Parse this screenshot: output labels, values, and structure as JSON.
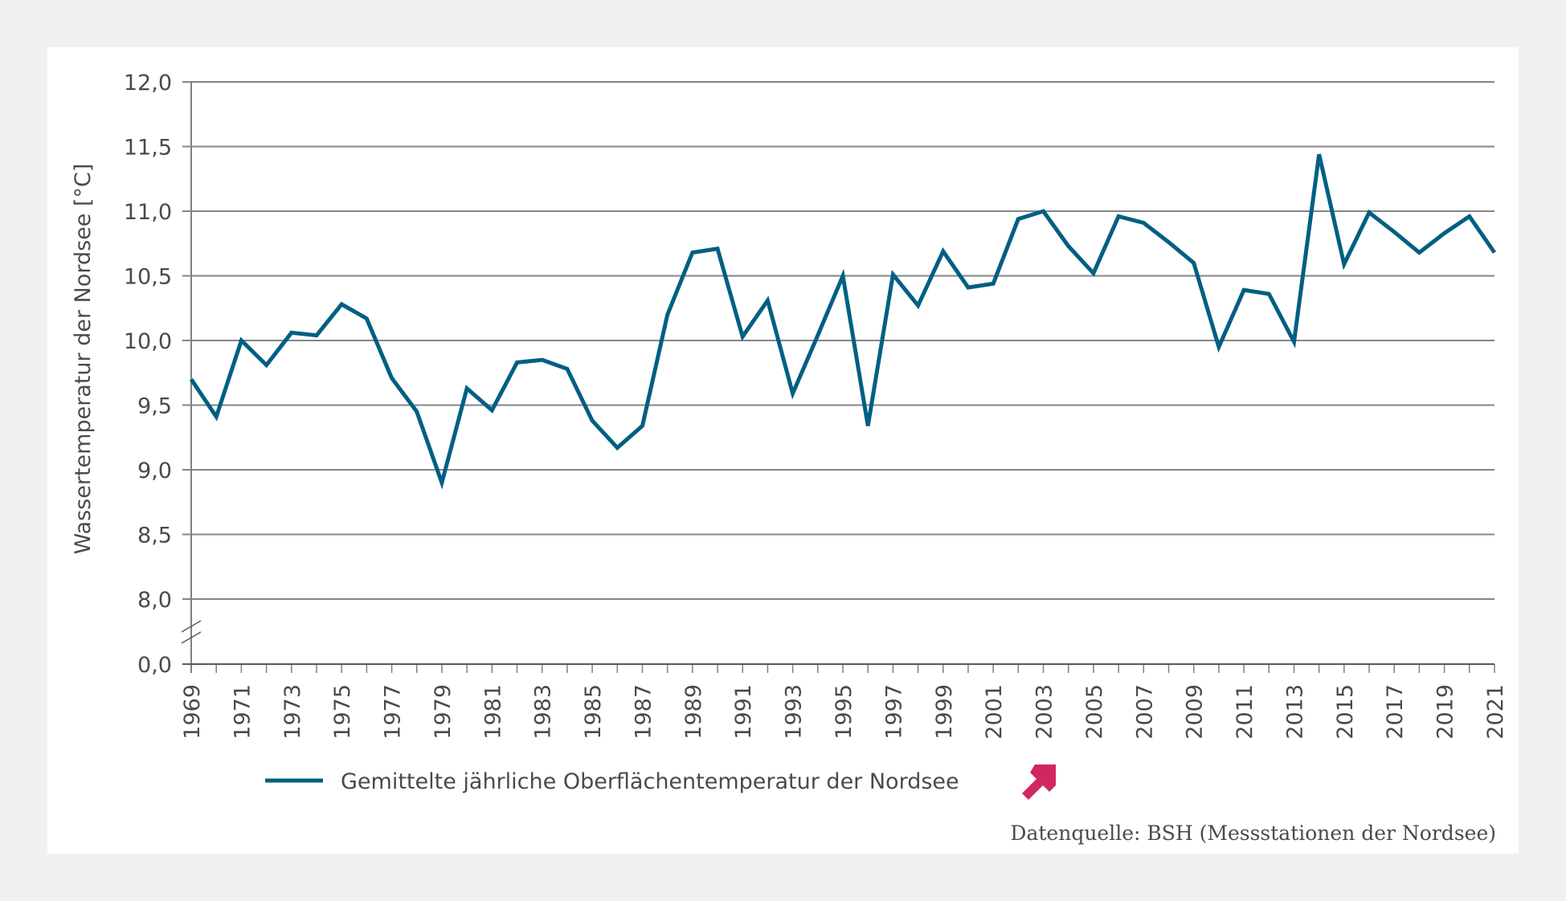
{
  "chart_data": {
    "type": "line",
    "title": "",
    "xlabel": "",
    "ylabel": "Wassertemperatur der Nordsee [°C]",
    "xlim": [
      1969,
      2021
    ],
    "ylim": [
      8.0,
      12.0
    ],
    "y_axis_break": {
      "from": 0.0,
      "to": 8.0
    },
    "grid": "horizontal",
    "y_ticks": [
      {
        "value": 12.0,
        "label": "12,0"
      },
      {
        "value": 11.5,
        "label": "11,5"
      },
      {
        "value": 11.0,
        "label": "11,0"
      },
      {
        "value": 10.5,
        "label": "10,5"
      },
      {
        "value": 10.0,
        "label": "10,0"
      },
      {
        "value": 9.5,
        "label": "9,5"
      },
      {
        "value": 9.0,
        "label": "9,0"
      },
      {
        "value": 8.5,
        "label": "8,5"
      },
      {
        "value": 8.0,
        "label": "8,0"
      },
      {
        "value": 0.0,
        "label": "0,0"
      }
    ],
    "x_tick_labels": [
      "1969",
      "1971",
      "1973",
      "1975",
      "1977",
      "1979",
      "1981",
      "1983",
      "1985",
      "1987",
      "1989",
      "1991",
      "1993",
      "1995",
      "1997",
      "1999",
      "2001",
      "2003",
      "2005",
      "2007",
      "2009",
      "2011",
      "2013",
      "2015",
      "2017",
      "2019",
      "2021"
    ],
    "x": [
      1969,
      1970,
      1971,
      1972,
      1973,
      1974,
      1975,
      1976,
      1977,
      1978,
      1979,
      1980,
      1981,
      1982,
      1983,
      1984,
      1985,
      1986,
      1987,
      1988,
      1989,
      1990,
      1991,
      1992,
      1993,
      1994,
      1995,
      1996,
      1997,
      1998,
      1999,
      2000,
      2001,
      2002,
      2003,
      2004,
      2005,
      2006,
      2007,
      2008,
      2009,
      2010,
      2011,
      2012,
      2013,
      2014,
      2015,
      2016,
      2017,
      2018,
      2019,
      2020,
      2021
    ],
    "series": [
      {
        "name": "Gemittelte jährliche Oberflächentemperatur der Nordsee",
        "color": "#005f83",
        "values": [
          9.7,
          9.41,
          10.0,
          9.81,
          10.06,
          10.04,
          10.28,
          10.17,
          9.71,
          9.45,
          8.9,
          9.63,
          9.46,
          9.83,
          9.85,
          9.78,
          9.38,
          9.17,
          9.34,
          10.2,
          10.68,
          10.71,
          10.03,
          10.31,
          9.59,
          10.04,
          10.5,
          9.34,
          10.51,
          10.27,
          10.69,
          10.41,
          10.44,
          10.94,
          11.0,
          10.73,
          10.52,
          10.96,
          10.91,
          10.76,
          10.6,
          9.95,
          10.39,
          10.36,
          9.99,
          11.44,
          10.59,
          10.99,
          10.84,
          10.68,
          10.83,
          10.96,
          10.68
        ]
      }
    ],
    "legend": {
      "position": "bottom-left",
      "label": "Gemittelte jährliche Oberflächentemperatur der Nordsee",
      "trend_icon": "arrow-up-right-icon",
      "trend_color": "#d0285e"
    },
    "source": "Datenquelle: BSH (Messstationen der Nordsee)"
  }
}
